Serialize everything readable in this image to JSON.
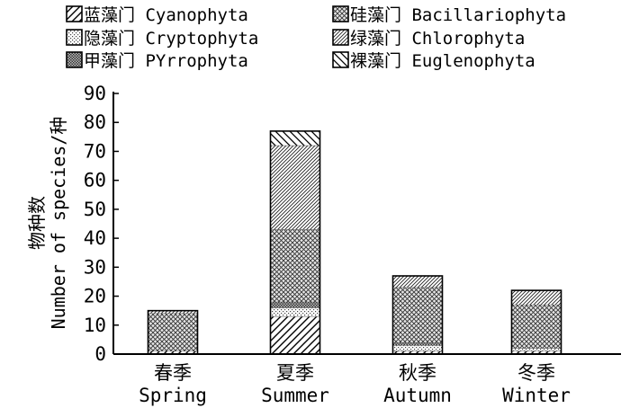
{
  "chart_data": {
    "type": "bar",
    "stacked": true,
    "categories": [
      {
        "cn": "春季",
        "en": "Spring"
      },
      {
        "cn": "夏季",
        "en": "Summer"
      },
      {
        "cn": "秋季",
        "en": "Autumn"
      },
      {
        "cn": "冬季",
        "en": "Winter"
      }
    ],
    "series": [
      {
        "name": "蓝藻门 Cyanophyta",
        "pattern": "diag-wide",
        "values": [
          1,
          13,
          1,
          1
        ]
      },
      {
        "name": "隐藻门 Cryptophyta",
        "pattern": "dots-light",
        "values": [
          0,
          3,
          2,
          1
        ]
      },
      {
        "name": "甲藻门 PYrrophyta",
        "pattern": "dots-dense",
        "values": [
          0,
          2,
          1,
          0
        ]
      },
      {
        "name": "硅藻门 Bacillariophyta",
        "pattern": "crosshatch",
        "values": [
          13,
          25,
          19,
          15
        ]
      },
      {
        "name": "绿藻门 Chlorophyta",
        "pattern": "diag-fine",
        "values": [
          1,
          29,
          4,
          5
        ]
      },
      {
        "name": "裸藻门 Euglenophyta",
        "pattern": "backdiag",
        "values": [
          0,
          5,
          0,
          0
        ]
      }
    ],
    "legend_order": [
      0,
      3,
      1,
      4,
      2,
      5
    ],
    "legend_placement": "top",
    "ylabel_cn": "物种数",
    "ylabel_en": "Number of species/种",
    "ylim": [
      0,
      90
    ],
    "yticks": [
      0,
      10,
      20,
      30,
      40,
      50,
      60,
      70,
      80,
      90
    ],
    "grid": false
  }
}
